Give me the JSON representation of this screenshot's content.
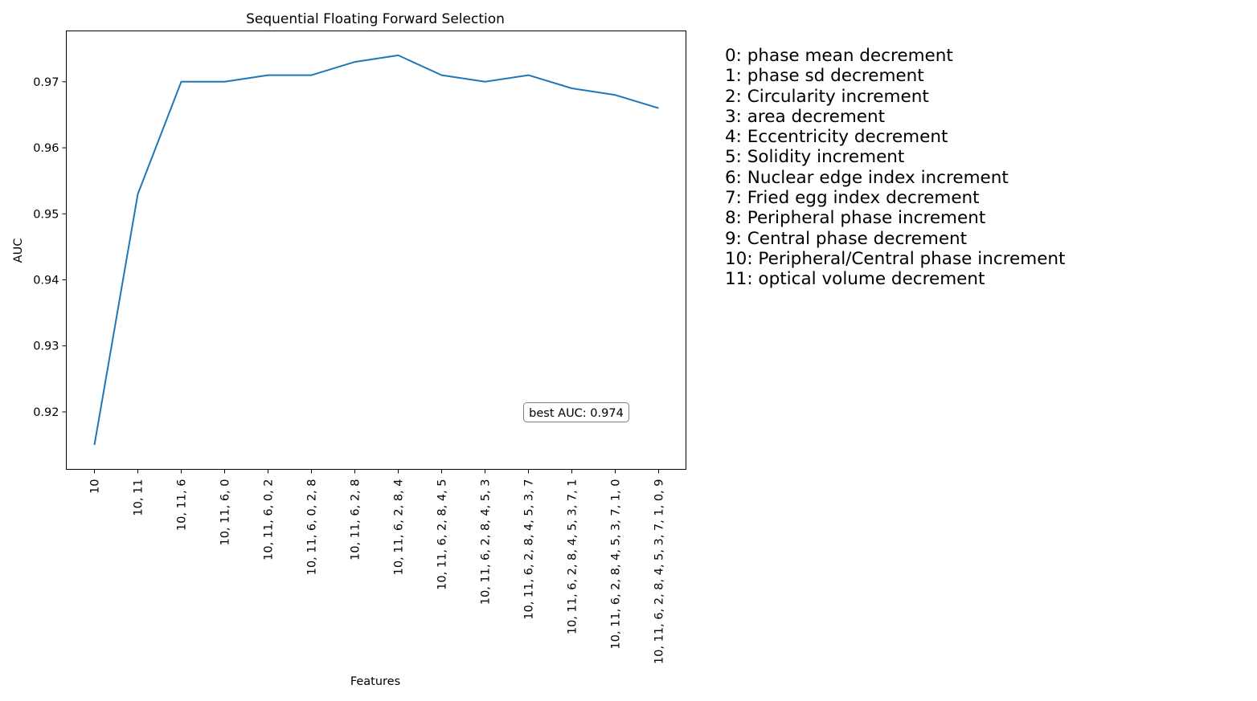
{
  "chart_data": {
    "type": "line",
    "title": "Sequential Floating Forward Selection",
    "xlabel": "Features",
    "ylabel": "AUC",
    "categories": [
      "10",
      "10, 11",
      "10, 11, 6",
      "10, 11, 6, 0",
      "10, 11, 6, 0, 2",
      "10, 11, 6, 0, 2, 8",
      "10, 11, 6, 2, 8",
      "10, 11, 6, 2, 8, 4",
      "10, 11, 6, 2, 8, 4, 5",
      "10, 11, 6, 2, 8, 4, 5, 3",
      "10, 11, 6, 2, 8, 4, 5, 3, 7",
      "10, 11, 6, 2, 8, 4, 5, 3, 7, 1",
      "10, 11, 6, 2, 8, 4, 5, 3, 7, 1, 0",
      "10, 11, 6, 2, 8, 4, 5, 3, 7, 1, 0, 9"
    ],
    "series": [
      {
        "values": [
          0.915,
          0.953,
          0.97,
          0.97,
          0.971,
          0.971,
          0.973,
          0.974,
          0.971,
          0.97,
          0.971,
          0.969,
          0.968,
          0.966
        ],
        "color": "#1f77b4"
      }
    ],
    "yticks": [
      0.92,
      0.93,
      0.94,
      0.95,
      0.96,
      0.97
    ],
    "ytick_labels": [
      "0.92",
      "0.93",
      "0.94",
      "0.95",
      "0.96",
      "0.97"
    ],
    "ylim": [
      0.9113,
      0.9777
    ],
    "grid": false,
    "annotation": "best AUC: 0.974"
  },
  "legend": [
    "0: phase mean decrement",
    "1: phase sd decrement",
    "2: Circularity increment",
    "3: area decrement",
    "4: Eccentricity decrement",
    "5: Solidity increment",
    "6: Nuclear edge index increment",
    "7: Fried egg index decrement",
    "8: Peripheral phase increment",
    "9: Central phase decrement",
    "10: Peripheral/Central phase increment",
    "11: optical volume decrement"
  ]
}
